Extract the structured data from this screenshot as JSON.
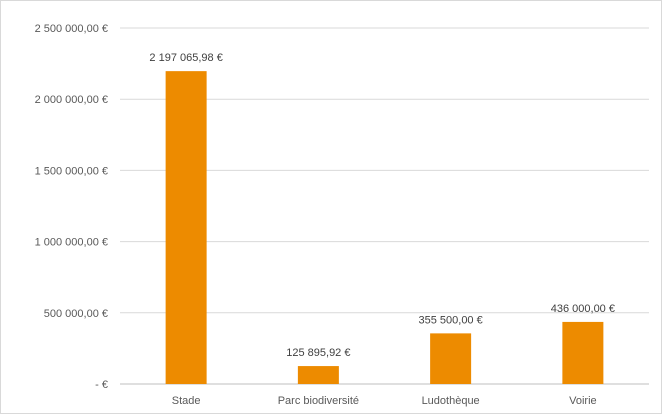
{
  "chart_data": {
    "type": "bar",
    "categories": [
      "Stade",
      "Parc biodiversité",
      "Ludothèque",
      "Voirie"
    ],
    "values": [
      2197065.98,
      125895.92,
      355500,
      436000
    ],
    "data_labels": [
      "2 197 065,98 €",
      "125 895,92 €",
      "355 500,00 €",
      "436 000,00 €"
    ],
    "ylim": [
      0,
      2500000
    ],
    "yticks": [
      0,
      500000,
      1000000,
      1500000,
      2000000,
      2500000
    ],
    "ytick_labels": [
      "-   €",
      "500 000,00 €",
      "1 000 000,00 €",
      "1 500 000,00 €",
      "2 000 000,00 €",
      "2 500 000,00 €"
    ],
    "grid": true,
    "legend": "none",
    "bar_color": "#ED8B00"
  }
}
